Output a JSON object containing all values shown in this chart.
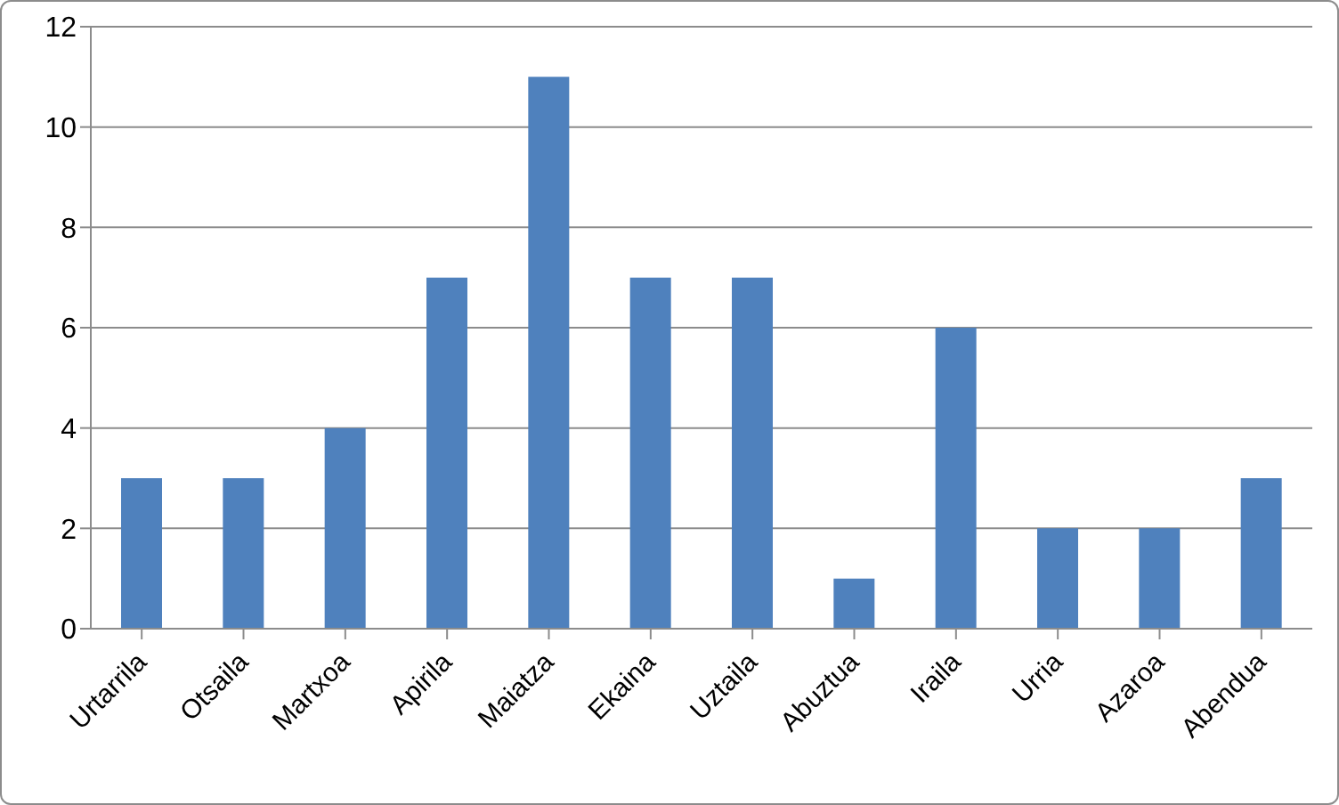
{
  "chart_data": {
    "type": "bar",
    "categories": [
      "Urtarrila",
      "Otsaila",
      "Martxoa",
      "Apirila",
      "Maiatza",
      "Ekaina",
      "Uztaila",
      "Abuztua",
      "Iraila",
      "Urria",
      "Azaroa",
      "Abendua"
    ],
    "values": [
      3,
      3,
      4,
      7,
      11,
      7,
      7,
      1,
      6,
      2,
      2,
      3
    ],
    "color": "#4f81bd",
    "ylim": [
      0,
      12
    ],
    "yticks": [
      0,
      2,
      4,
      6,
      8,
      10,
      12
    ],
    "grid": "y",
    "legend": false
  }
}
